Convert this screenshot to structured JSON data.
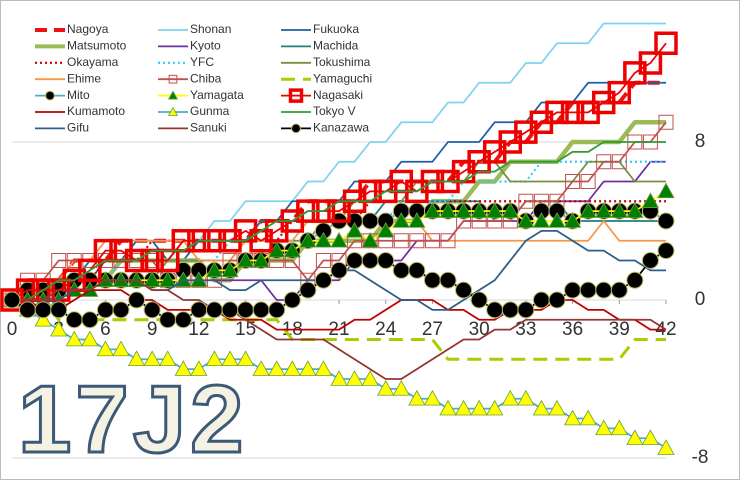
{
  "chart_data": {
    "type": "line",
    "watermark": "17J2",
    "x": [
      0,
      1,
      2,
      3,
      4,
      5,
      6,
      7,
      8,
      9,
      10,
      11,
      12,
      13,
      14,
      15,
      16,
      17,
      18,
      19,
      20,
      21,
      22,
      23,
      24,
      25,
      26,
      27,
      28,
      29,
      30,
      31,
      32,
      33,
      34,
      35,
      36,
      37,
      38,
      39,
      40,
      41,
      42
    ],
    "xlim": [
      0,
      42
    ],
    "xticks": [
      0,
      3,
      6,
      9,
      12,
      15,
      18,
      21,
      24,
      27,
      30,
      33,
      36,
      39,
      42
    ],
    "ylim": [
      -8,
      15
    ],
    "yticks": [
      -8,
      0,
      8
    ],
    "grid": true,
    "series": [
      {
        "name": "Nagoya",
        "color": "#ee1111",
        "line_style": "bold-dashed",
        "values": [
          0,
          1,
          1,
          1,
          2,
          2,
          2,
          3,
          3,
          3,
          3,
          3,
          3,
          3,
          3,
          3,
          4,
          4,
          4,
          5,
          5,
          5,
          5,
          6,
          6,
          6,
          6,
          6,
          6,
          7,
          7,
          7,
          8,
          8,
          9,
          9,
          10,
          10,
          10,
          10,
          11,
          11,
          11
        ]
      },
      {
        "name": "Shonan",
        "color": "#7fd3f0",
        "line_style": "solid",
        "values": [
          0,
          0,
          1,
          1,
          1,
          2,
          2,
          2,
          3,
          3,
          3,
          3,
          3,
          4,
          4,
          5,
          5,
          5,
          5,
          6,
          6,
          7,
          7,
          8,
          8,
          9,
          9,
          9,
          10,
          10,
          11,
          11,
          11,
          12,
          12,
          13,
          13,
          13,
          14,
          14,
          14,
          14,
          14
        ]
      },
      {
        "name": "Fukuoka",
        "color": "#1f5fa6",
        "line_style": "solid",
        "values": [
          0,
          0,
          1,
          1,
          1,
          2,
          2,
          2,
          3,
          3,
          2,
          2,
          3,
          3,
          3,
          3,
          4,
          4,
          5,
          5,
          5,
          5,
          6,
          6,
          6,
          7,
          7,
          7,
          8,
          8,
          8,
          9,
          9,
          9,
          10,
          10,
          10,
          11,
          11,
          11,
          11,
          11,
          11
        ]
      },
      {
        "name": "Matsumoto",
        "color": "#9bbb59",
        "line_style": "thick",
        "values": [
          0,
          0,
          1,
          1,
          1,
          1,
          1,
          2,
          2,
          2,
          2,
          2,
          2,
          1,
          1,
          2,
          2,
          2,
          2,
          3,
          3,
          3,
          3,
          3,
          4,
          4,
          4,
          5,
          5,
          5,
          6,
          6,
          7,
          7,
          7,
          7,
          8,
          8,
          8,
          8,
          9,
          9,
          9
        ]
      },
      {
        "name": "Kyoto",
        "color": "#7030a0",
        "line_style": "solid",
        "values": [
          0,
          0,
          0,
          1,
          1,
          1,
          2,
          2,
          2,
          2,
          2,
          2,
          2,
          1,
          1,
          1,
          1,
          0,
          0,
          1,
          1,
          1,
          2,
          2,
          2,
          2,
          3,
          3,
          3,
          4,
          4,
          4,
          4,
          4,
          5,
          5,
          5,
          5,
          6,
          6,
          6,
          7,
          7
        ]
      },
      {
        "name": "Machida",
        "color": "#1f7f7f",
        "line_style": "solid",
        "values": [
          0,
          0,
          1,
          1,
          1,
          2,
          2,
          2,
          2,
          2,
          2,
          3,
          3,
          3,
          3,
          3,
          4,
          4,
          4,
          4,
          4,
          4,
          4,
          4,
          5,
          5,
          5,
          5,
          5,
          5,
          5,
          4,
          4,
          5,
          5,
          5,
          4,
          4,
          4,
          4,
          4,
          4,
          4
        ]
      },
      {
        "name": "Okayama",
        "color": "#cc0000",
        "line_style": "dotted",
        "values": [
          0,
          0,
          1,
          1,
          1,
          1,
          2,
          2,
          2,
          3,
          3,
          3,
          3,
          3,
          3,
          3,
          3,
          3,
          4,
          4,
          4,
          4,
          4,
          5,
          5,
          5,
          5,
          5,
          5,
          5,
          5,
          5,
          5,
          5,
          5,
          5,
          5,
          5,
          5,
          5,
          5,
          5,
          5
        ]
      },
      {
        "name": "YFC",
        "color": "#33ccff",
        "line_style": "dotted",
        "values": [
          0,
          0,
          0,
          1,
          1,
          1,
          1,
          2,
          2,
          2,
          2,
          2,
          2,
          2,
          3,
          3,
          3,
          3,
          3,
          3,
          4,
          4,
          4,
          4,
          4,
          5,
          5,
          5,
          5,
          6,
          6,
          6,
          6,
          6,
          7,
          7,
          7,
          7,
          7,
          7,
          7,
          7,
          7
        ]
      },
      {
        "name": "Tokushima",
        "color": "#76923c",
        "line_style": "solid",
        "values": [
          0,
          0,
          0,
          0,
          1,
          1,
          1,
          1,
          1,
          1,
          2,
          2,
          2,
          2,
          2,
          3,
          3,
          3,
          3,
          3,
          4,
          4,
          5,
          5,
          5,
          5,
          6,
          6,
          6,
          6,
          7,
          7,
          6,
          6,
          6,
          6,
          6,
          7,
          7,
          7,
          6,
          6,
          6
        ]
      },
      {
        "name": "Ehime",
        "color": "#f79646",
        "line_style": "solid",
        "values": [
          0,
          0,
          1,
          1,
          2,
          2,
          3,
          3,
          3,
          3,
          3,
          3,
          2,
          2,
          2,
          3,
          3,
          3,
          3,
          4,
          4,
          4,
          4,
          4,
          4,
          4,
          4,
          3,
          3,
          3,
          3,
          3,
          3,
          3,
          3,
          3,
          3,
          3,
          4,
          3,
          3,
          3,
          3
        ]
      },
      {
        "name": "Chiba",
        "color": "#c0504d",
        "line_style": "solid",
        "marker": "square",
        "marker_color": "none",
        "values": [
          0,
          1,
          1,
          2,
          2,
          2,
          2,
          2,
          2,
          2,
          1,
          1,
          1,
          1,
          2,
          2,
          2,
          2,
          2,
          1,
          2,
          2,
          3,
          3,
          3,
          3,
          3,
          3,
          3,
          4,
          4,
          4,
          4,
          5,
          5,
          5,
          6,
          6,
          7,
          7,
          8,
          8,
          9
        ]
      },
      {
        "name": "Yamaguchi",
        "color": "#aacc00",
        "line_style": "dashed",
        "values": [
          0,
          0,
          0,
          -1,
          -1,
          -1,
          -1,
          -1,
          -1,
          -1,
          -1,
          -1,
          -1,
          -1,
          -1,
          -1,
          -1,
          -1,
          -2,
          -2,
          -2,
          -2,
          -2,
          -2,
          -2,
          -2,
          -2,
          -2,
          -3,
          -3,
          -3,
          -3,
          -3,
          -3,
          -3,
          -3,
          -3,
          -3,
          -3,
          -3,
          -2,
          -2,
          -2
        ]
      },
      {
        "name": "Mito",
        "color": "#4bacc6",
        "line_style": "solid",
        "marker": "circle",
        "marker_color": "#000000",
        "values": [
          0,
          0.5,
          0.5,
          0.5,
          1,
          1,
          1,
          1,
          1,
          1,
          1,
          1.5,
          1.5,
          1.5,
          1.5,
          2,
          2,
          2.5,
          2.5,
          3,
          3.5,
          4,
          4,
          4,
          4,
          4.5,
          4.5,
          4.5,
          4.5,
          4.5,
          4.5,
          4.5,
          4.5,
          4,
          4.5,
          4.5,
          4,
          4.5,
          4.5,
          4.5,
          4.5,
          4.5,
          4
        ]
      },
      {
        "name": "Yamagata",
        "color": "#ffff00",
        "line_style": "solid",
        "marker": "triangle",
        "marker_color": "#008000",
        "values": [
          0,
          0,
          0,
          0,
          0.5,
          0.5,
          1,
          1,
          1,
          1,
          1,
          1,
          1,
          1.5,
          1.5,
          2,
          2,
          2.5,
          2.5,
          3,
          3,
          3,
          3.5,
          3,
          3.5,
          4,
          4,
          4.5,
          4.5,
          4.5,
          4.5,
          4.5,
          4.5,
          4,
          4,
          4,
          4,
          4.5,
          4.5,
          4.5,
          4.5,
          5,
          5.5
        ]
      },
      {
        "name": "Nagasaki",
        "color": "#ee0000",
        "line_style": "solid",
        "marker": "square-large",
        "marker_color": "none",
        "values": [
          0,
          0.5,
          0.5,
          0.5,
          1,
          1.5,
          2.5,
          2.5,
          2,
          2,
          2,
          3,
          3,
          3,
          3,
          3.5,
          3,
          3.5,
          4,
          4.5,
          4.5,
          4.5,
          5,
          5.5,
          5.5,
          6,
          5.5,
          6,
          6,
          6.5,
          7,
          7.5,
          8,
          8.5,
          9,
          9.5,
          9.5,
          9.5,
          10,
          10.5,
          11.5,
          12,
          13
        ]
      },
      {
        "name": "Kumamoto",
        "color": "#c00000",
        "line_style": "solid",
        "values": [
          0,
          0,
          -0.5,
          -0.5,
          0,
          0.5,
          0.5,
          0.5,
          0,
          0,
          -0.5,
          -0.5,
          -0.5,
          -0.5,
          -1,
          -1,
          -1,
          -1.5,
          -1.5,
          -1.5,
          -1.5,
          -1.5,
          -1,
          -1,
          -0.5,
          0,
          0,
          0,
          -0.5,
          -0.5,
          -1,
          -1,
          -0.5,
          -0.5,
          -0.5,
          0,
          0,
          -0.5,
          -0.5,
          -1,
          -1,
          -1.5,
          -1.5
        ]
      },
      {
        "name": "Gunma",
        "color": "#4bacc6",
        "line_style": "solid",
        "marker": "triangle",
        "marker_color": "#ffff00",
        "values": [
          0,
          -0.5,
          -1,
          -1.5,
          -2,
          -2,
          -2.5,
          -2.5,
          -3,
          -3,
          -3,
          -3.5,
          -3.5,
          -3,
          -3,
          -3,
          -3.5,
          -3.5,
          -3.5,
          -3.5,
          -3.5,
          -4,
          -4,
          -4,
          -4.5,
          -4.5,
          -5,
          -5,
          -5.5,
          -5.5,
          -5.5,
          -5.5,
          -5,
          -5,
          -5.5,
          -5.5,
          -6,
          -6,
          -6.5,
          -6.5,
          -7,
          -7,
          -7.5
        ]
      },
      {
        "name": "Tokyo V",
        "color": "#339933",
        "line_style": "solid",
        "values": [
          0,
          0,
          0.5,
          1,
          1,
          1.5,
          2,
          2,
          2,
          2.5,
          2.5,
          2.5,
          3,
          3,
          3,
          3,
          3.5,
          4,
          4,
          4.5,
          4.5,
          5,
          5,
          5,
          5.5,
          5.5,
          5.5,
          6,
          6,
          6,
          6.5,
          6.5,
          7,
          7,
          7,
          7,
          7.5,
          7.5,
          8,
          8,
          8,
          8,
          8
        ]
      },
      {
        "name": "Gifu",
        "color": "#2c5f8a",
        "line_style": "solid",
        "values": [
          0,
          0,
          0,
          0,
          0.5,
          0.5,
          1,
          1,
          1,
          0.5,
          0.5,
          1,
          1,
          1,
          0.5,
          0.5,
          1,
          1,
          1,
          1,
          1,
          1.5,
          1.5,
          1,
          0.5,
          0,
          0,
          -0.5,
          -0.5,
          0,
          0.5,
          1,
          2,
          3,
          3.5,
          3.5,
          3,
          2.5,
          2.5,
          2,
          2,
          1.5,
          1.5
        ]
      },
      {
        "name": "Sanuki",
        "color": "#943634",
        "line_style": "solid",
        "values": [
          0,
          0,
          0,
          0.5,
          0.5,
          0.5,
          1,
          1,
          1,
          0.5,
          0.5,
          0,
          0,
          -0.5,
          -0.5,
          -1,
          -1.5,
          -2,
          -2,
          -2,
          -2,
          -2.5,
          -3,
          -3.5,
          -4,
          -4,
          -3.5,
          -3,
          -2.5,
          -2,
          -2,
          -1.5,
          -1.5,
          -1,
          -1,
          -1,
          -1,
          -1,
          -1,
          -1,
          -1,
          -1,
          -1.5
        ]
      },
      {
        "name": "Kanazawa",
        "color": "#000000",
        "line_style": "solid",
        "marker": "circle",
        "marker_color": "#000000",
        "values": [
          0,
          -0.5,
          -0.5,
          -0.5,
          -1,
          -1,
          -0.5,
          -0.5,
          0,
          -0.5,
          -1,
          -1,
          -0.5,
          -0.5,
          -0.5,
          -0.5,
          -0.5,
          -0.5,
          0,
          0.5,
          1,
          1.5,
          2,
          2,
          2,
          1.5,
          1.5,
          1,
          1,
          0.5,
          0,
          -0.5,
          -0.5,
          -0.5,
          0,
          0,
          0.5,
          0.5,
          0.5,
          0.5,
          1,
          2,
          2.5
        ]
      }
    ]
  }
}
